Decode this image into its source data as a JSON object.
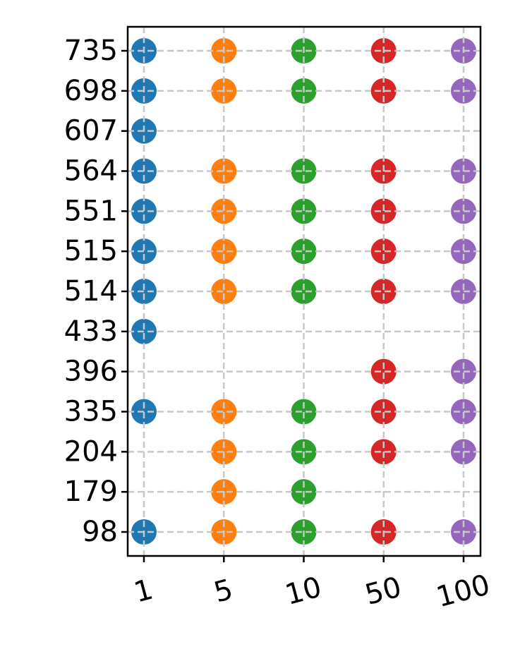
{
  "chart_data": {
    "type": "scatter",
    "categories": [
      "1",
      "5",
      "10",
      "50",
      "100"
    ],
    "yticks": [
      735,
      698,
      607,
      564,
      551,
      515,
      514,
      433,
      396,
      335,
      204,
      179,
      98
    ],
    "grid": true,
    "series": [
      {
        "color": "#1f77b4",
        "values": [
          735,
          698,
          607,
          564,
          551,
          515,
          514,
          433,
          335,
          98
        ]
      },
      {
        "color": "#ff7f0e",
        "values": [
          735,
          698,
          564,
          551,
          515,
          514,
          335,
          204,
          179,
          98
        ]
      },
      {
        "color": "#2ca02c",
        "values": [
          735,
          698,
          564,
          551,
          515,
          514,
          335,
          204,
          179,
          98
        ]
      },
      {
        "color": "#d62728",
        "values": [
          735,
          698,
          564,
          551,
          515,
          514,
          396,
          335,
          204,
          98
        ]
      },
      {
        "color": "#9467bd",
        "values": [
          735,
          698,
          564,
          551,
          515,
          514,
          396,
          335,
          204,
          98
        ]
      }
    ]
  }
}
